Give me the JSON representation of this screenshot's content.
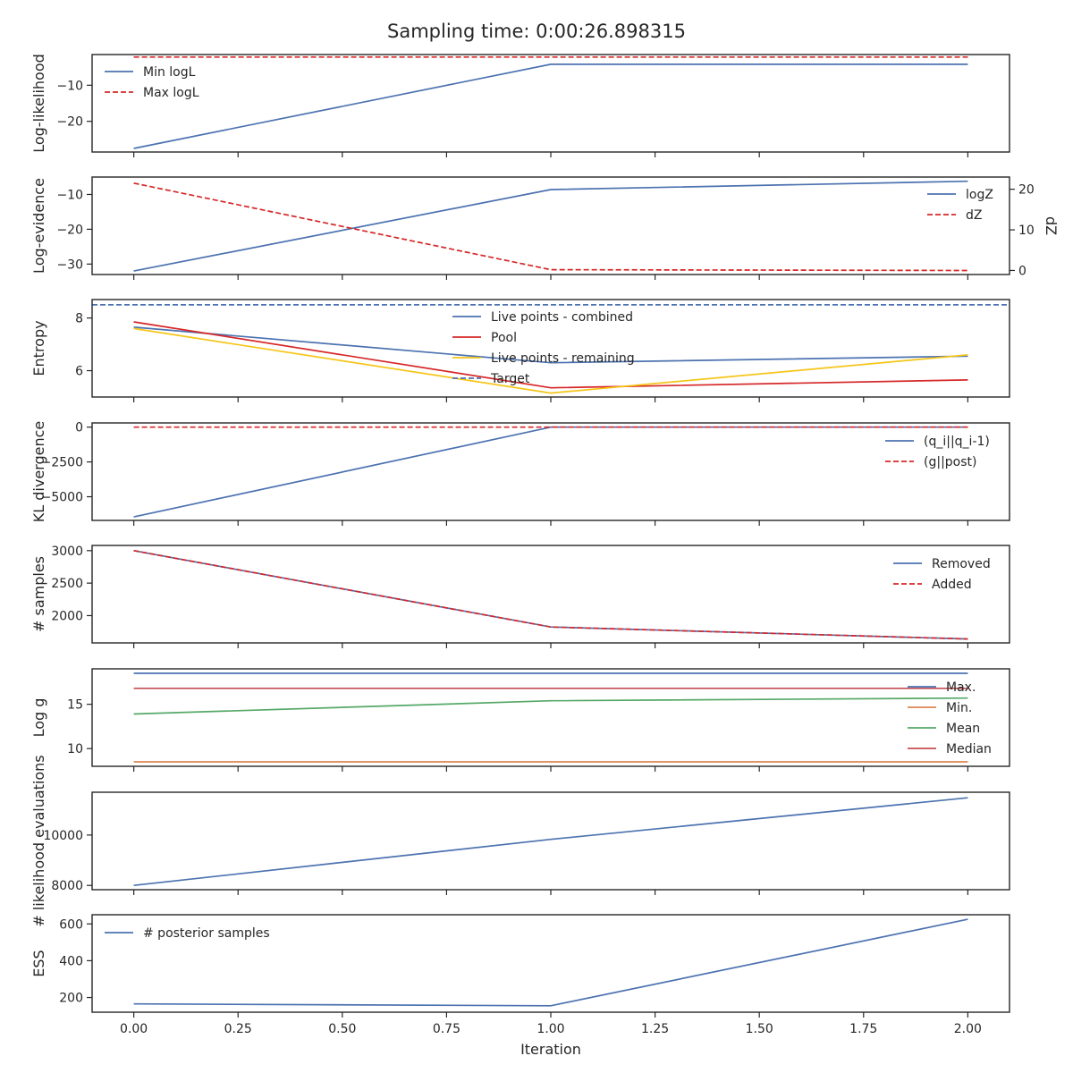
{
  "figure": {
    "title": "Sampling time: 0:00:26.898315",
    "xlabel": "Iteration",
    "xticks": [
      0.0,
      0.25,
      0.5,
      0.75,
      1.0,
      1.25,
      1.5,
      1.75,
      2.0
    ],
    "xtick_labels": [
      "0.00",
      "0.25",
      "0.50",
      "0.75",
      "1.00",
      "1.25",
      "1.50",
      "1.75",
      "2.00"
    ],
    "xlim": [
      -0.1,
      2.1
    ]
  },
  "colors": {
    "blue": "#4c72b0",
    "red": "#d62728",
    "yellow": "#f5c518",
    "orange": "#dd8452",
    "green": "#55a868",
    "crimson": "#c44e52",
    "axis": "#262626"
  },
  "chart_data": [
    {
      "type": "line",
      "ylabel": "Log-likelihood",
      "ylim": [
        -28.5,
        -1.5
      ],
      "yticks": [
        -10,
        -20
      ],
      "ytick_labels": [
        "−10",
        "−20"
      ],
      "legend": "top-left",
      "x": [
        0,
        1,
        2
      ],
      "series": [
        {
          "name": "Min logL",
          "values": [
            -27.5,
            -4.2,
            -4.2
          ],
          "color": "blue",
          "dash": false
        },
        {
          "name": "Max logL",
          "values": [
            -2.2,
            -2.2,
            -2.2
          ],
          "color": "red",
          "dash": true
        }
      ]
    },
    {
      "type": "line",
      "ylabel": "Log-evidence",
      "ylim": [
        -33,
        -5
      ],
      "yticks": [
        -10,
        -20,
        -30
      ],
      "ytick_labels": [
        "−10",
        "−20",
        "−30"
      ],
      "y2label": "dZ",
      "y2lim": [
        -1,
        23
      ],
      "y2ticks": [
        0,
        10,
        20
      ],
      "y2tick_labels": [
        "0",
        "10",
        "20"
      ],
      "legend": "right",
      "x": [
        0,
        1,
        2
      ],
      "series": [
        {
          "name": "logZ",
          "values": [
            -32,
            -8.6,
            -6.2
          ],
          "color": "blue",
          "dash": false,
          "axis": "left"
        },
        {
          "name": "dZ",
          "values": [
            21.5,
            0.2,
            0.0
          ],
          "color": "red",
          "dash": true,
          "axis": "right"
        }
      ]
    },
    {
      "type": "line",
      "ylabel": "Entropy",
      "ylim": [
        5.0,
        8.7
      ],
      "yticks": [
        6,
        8
      ],
      "ytick_labels": [
        "6",
        "8"
      ],
      "legend": "top-center",
      "x": [
        0,
        1,
        2
      ],
      "series": [
        {
          "name": "Live points - combined",
          "values": [
            7.65,
            6.3,
            6.55
          ],
          "color": "blue",
          "dash": false
        },
        {
          "name": "Pool",
          "values": [
            7.85,
            5.35,
            5.65
          ],
          "color": "red",
          "dash": false
        },
        {
          "name": "Live points - remaining",
          "values": [
            7.6,
            5.15,
            6.6
          ],
          "color": "yellow",
          "dash": false
        },
        {
          "name": "Target",
          "values": [
            8.5,
            8.5,
            8.5
          ],
          "color": "blue",
          "dash": true,
          "full_width": true
        }
      ]
    },
    {
      "type": "line",
      "ylabel": "KL divergence",
      "ylim": [
        -6700,
        300
      ],
      "yticks": [
        0,
        -2500,
        -5000
      ],
      "ytick_labels": [
        "0",
        "−2500",
        "−5000"
      ],
      "legend": "right",
      "x": [
        0,
        1,
        2
      ],
      "series": [
        {
          "name": "(q_i||q_i-1)",
          "values": [
            -6450,
            0,
            0
          ],
          "color": "blue",
          "dash": false
        },
        {
          "name": "(g||post)",
          "values": [
            0,
            0,
            0
          ],
          "color": "red",
          "dash": true
        }
      ]
    },
    {
      "type": "line",
      "ylabel": "# samples",
      "ylim": [
        1580,
        3080
      ],
      "yticks": [
        3000,
        2500,
        2000
      ],
      "ytick_labels": [
        "3000",
        "2500",
        "2000"
      ],
      "legend": "top-right",
      "x": [
        0,
        1,
        2
      ],
      "series": [
        {
          "name": "Removed",
          "values": [
            3000,
            1825,
            1640
          ],
          "color": "blue",
          "dash": false
        },
        {
          "name": "Added",
          "values": [
            3000,
            1825,
            1640
          ],
          "color": "red",
          "dash": true
        }
      ]
    },
    {
      "type": "line",
      "ylabel": "Log g",
      "ylim": [
        8.0,
        19.0
      ],
      "yticks": [
        15,
        10
      ],
      "ytick_labels": [
        "15",
        "10"
      ],
      "legend": "right",
      "x": [
        0,
        1,
        2
      ],
      "series": [
        {
          "name": "Max.",
          "values": [
            18.5,
            18.5,
            18.5
          ],
          "color": "blue",
          "dash": false
        },
        {
          "name": "Min.",
          "values": [
            8.5,
            8.5,
            8.5
          ],
          "color": "orange",
          "dash": false
        },
        {
          "name": "Mean",
          "values": [
            13.9,
            15.4,
            15.7
          ],
          "color": "green",
          "dash": false
        },
        {
          "name": "Median",
          "values": [
            16.8,
            16.8,
            16.8
          ],
          "color": "crimson",
          "dash": false
        }
      ]
    },
    {
      "type": "line",
      "ylabel": "# likelihood evaluations",
      "ylim": [
        7830,
        11700
      ],
      "yticks": [
        10000,
        8000
      ],
      "ytick_labels": [
        "10000",
        "8000"
      ],
      "legend": "none",
      "x": [
        0,
        1,
        2
      ],
      "series": [
        {
          "name": "",
          "values": [
            8000,
            9830,
            11480
          ],
          "color": "blue",
          "dash": false
        }
      ]
    },
    {
      "type": "line",
      "ylabel": "ESS",
      "ylim": [
        120,
        650
      ],
      "yticks": [
        600,
        400,
        200
      ],
      "ytick_labels": [
        "600",
        "400",
        "200"
      ],
      "legend": "top-left",
      "x": [
        0,
        1,
        2
      ],
      "series": [
        {
          "name": "# posterior samples",
          "values": [
            165,
            155,
            625
          ],
          "color": "blue",
          "dash": false
        }
      ]
    }
  ]
}
